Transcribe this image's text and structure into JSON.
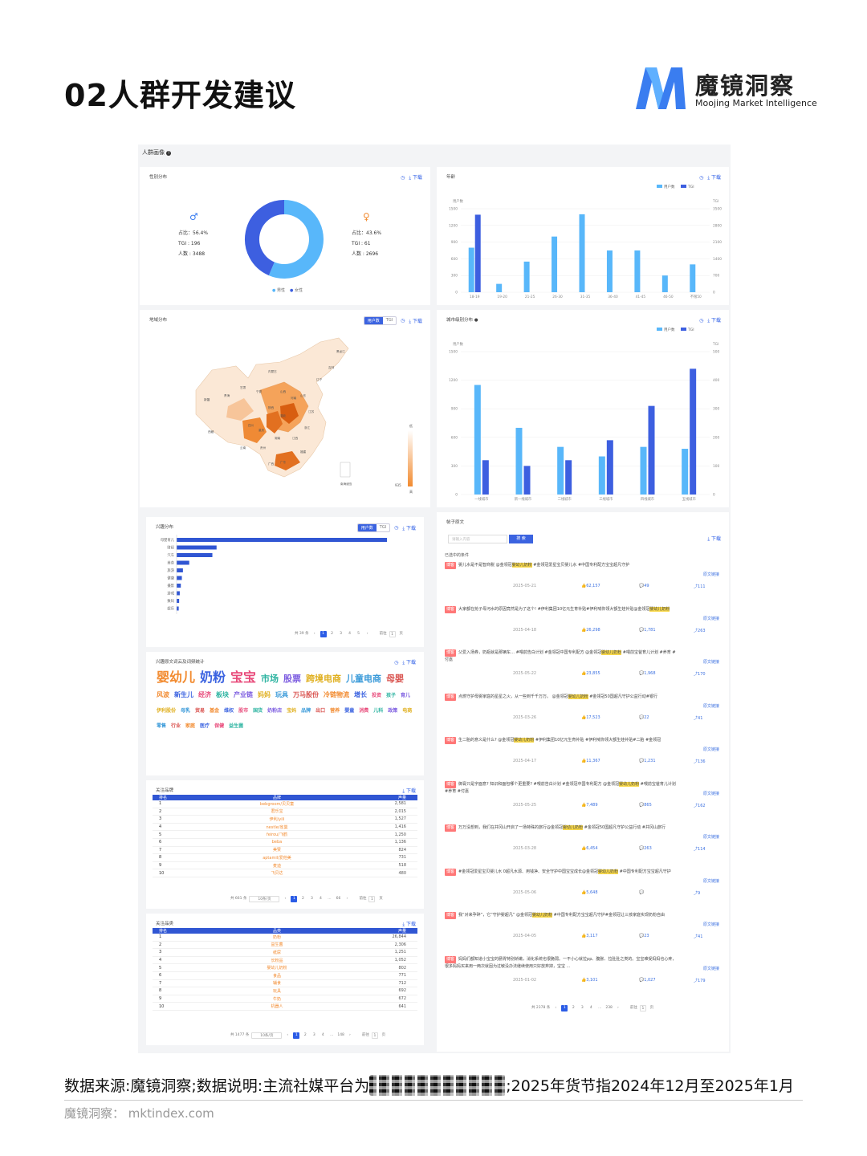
{
  "page": {
    "title": "02人群开发建议",
    "logo_name": "魔镜洞察",
    "logo_sub": "Moojing Market Intelligence",
    "footer_prefix": "数据来源:魔镜洞察;数据说明:主流社媒平台为",
    "footer_suffix": ";2025年货节指2024年12月至2025年1月",
    "site": "魔镜洞察： mktindex.com"
  },
  "colors": {
    "accent": "#2b5ce6",
    "light_blue": "#58b7fa",
    "dark_blue": "#3d5fe0",
    "orange": "#f28b30"
  },
  "section_title": "人群画像",
  "gender": {
    "title": "性别分布",
    "download": "下载",
    "male": {
      "share": "占比：56.4%",
      "tgi": "TGI : 196",
      "count": "人数 : 3488"
    },
    "female": {
      "share": "占比：43.6%",
      "tgi": "TGI : 61",
      "count": "人数 : 2696"
    },
    "legend": [
      "男性",
      "女性"
    ],
    "chart_data": {
      "type": "pie",
      "categories": [
        "男性",
        "女性"
      ],
      "values": [
        56.4,
        43.6
      ]
    }
  },
  "age": {
    "title": "年龄",
    "download": "下载",
    "legend": [
      "用户数",
      "TGI"
    ],
    "ylabel_left": "用户数",
    "ylabel_right": "TGI",
    "left_ticks": [
      "1500",
      "1200",
      "900",
      "600",
      "300",
      "0"
    ],
    "right_ticks": [
      "3500",
      "2800",
      "2100",
      "1400",
      "700",
      "0"
    ],
    "chart_data": {
      "type": "bar",
      "categories": [
        "18-19",
        "19-20",
        "21-25",
        "26-30",
        "31-35",
        "36-40",
        "41-45",
        "46-50",
        "不限50"
      ],
      "series": [
        {
          "name": "用户数",
          "values": [
            800,
            150,
            550,
            1000,
            1400,
            750,
            750,
            300,
            500
          ]
        },
        {
          "name": "TGI",
          "values": [
            3250,
            0,
            0,
            0,
            0,
            0,
            0,
            0,
            0
          ]
        }
      ],
      "ylim": [
        0,
        1500
      ],
      "ylim_right": [
        0,
        3500
      ]
    }
  },
  "region": {
    "title": "地域分布",
    "tabs": [
      "用户数",
      "TGI"
    ],
    "download": "下载",
    "scale_max": "低",
    "scale_min": "高",
    "scale_num": "935",
    "provinces": [
      "新疆",
      "西藏",
      "青海",
      "甘肃",
      "四川",
      "云南",
      "内蒙古",
      "山西",
      "陕西",
      "河南",
      "湖北",
      "湖南",
      "广西",
      "广东",
      "江西",
      "浙江",
      "山东",
      "江苏",
      "辽宁",
      "吉林",
      "黑龙江",
      "宁夏",
      "贵州",
      "重庆",
      "福建",
      "南海诸岛"
    ]
  },
  "city": {
    "title": "城市级别分布",
    "download": "下载",
    "legend": [
      "用户数",
      "TGI"
    ],
    "ylabel_left": "用户数",
    "ylabel_right": "TGI",
    "left_ticks": [
      "1500",
      "1200",
      "900",
      "600",
      "300",
      "0"
    ],
    "right_ticks": [
      "500",
      "400",
      "300",
      "200",
      "100",
      "0"
    ],
    "chart_data": {
      "type": "bar",
      "categories": [
        "一线城市",
        "新一线城市",
        "二线城市",
        "三线城市",
        "四线城市",
        "五线城市"
      ],
      "series": [
        {
          "name": "用户数",
          "values": [
            1150,
            700,
            500,
            400,
            500,
            480
          ]
        },
        {
          "name": "TGI",
          "values": [
            120,
            100,
            120,
            190,
            310,
            440
          ]
        }
      ],
      "ylim": [
        0,
        1500
      ],
      "ylim_right": [
        0,
        500
      ]
    }
  },
  "interest": {
    "title": "兴趣分布",
    "tabs": [
      "用户数",
      "TGI"
    ],
    "download": "下载",
    "labels": [
      "母婴育儿",
      "财经",
      "汽车",
      "美食",
      "旅游",
      "健康",
      "摄影",
      "游戏",
      "数码",
      "娱乐"
    ],
    "chart_data": {
      "type": "bar",
      "categories": [
        "母婴育儿",
        "财经",
        "汽车",
        "美食",
        "旅游",
        "健康",
        "摄影",
        "游戏",
        "数码",
        "娱乐"
      ],
      "values": [
        100,
        19,
        17,
        6,
        3,
        2.5,
        2,
        1.5,
        1.2,
        1
      ]
    },
    "pager": {
      "total": "共 39 条",
      "pages": [
        "1",
        "2",
        "3",
        "4",
        "5"
      ],
      "goto": "前往",
      "page_input": "1",
      "page_unit": "页"
    }
  },
  "wordcloud": {
    "title": "兴趣原文词云及词频统计",
    "download": "下载",
    "words": [
      "婴幼儿",
      "奶粉",
      "宝宝",
      "市场",
      "股票",
      "跨境电商",
      "儿童电商",
      "母婴",
      "风波",
      "新生儿",
      "经济",
      "板块",
      "产业链",
      "妈妈",
      "玩具",
      "万马股份",
      "冷链物流",
      "增长",
      "投资",
      "孩子",
      "育儿",
      "伊利股份",
      "母乳",
      "贸易",
      "基金",
      "维权",
      "股市",
      "国货",
      "奶粉店",
      "宝妈",
      "品牌",
      "出口",
      "营养",
      "婴童",
      "消费",
      "儿科",
      "政策",
      "电商",
      "零售",
      "行业",
      "家庭",
      "医疗",
      "保健",
      "益生菌"
    ]
  },
  "brands": {
    "title": "关注品牌",
    "download": "下载",
    "headers": [
      "排名",
      "品牌",
      "声量"
    ],
    "rows": [
      [
        "1",
        "bebgroom/贝贝童",
        "2,581"
      ],
      [
        "2",
        "君乐宝",
        "2,015"
      ],
      [
        "3",
        "伊利/yili",
        "1,527"
      ],
      [
        "4",
        "nestle/雀巢",
        "1,416"
      ],
      [
        "5",
        "feirou/飞鹤",
        "1,250"
      ],
      [
        "6",
        "beba",
        "1,136"
      ],
      [
        "7",
        "美赞",
        "824"
      ],
      [
        "8",
        "aptamil/爱他美",
        "731"
      ],
      [
        "9",
        "麦迪",
        "518"
      ],
      [
        "10",
        "飞贝达",
        "480"
      ]
    ],
    "pager": {
      "total": "共 661 条",
      "size": "10条/页",
      "pages": [
        "1",
        "2",
        "3",
        "4",
        "...",
        "66"
      ],
      "goto": "前往",
      "page_input": "1",
      "page_unit": "页"
    }
  },
  "categories": {
    "title": "关注品类",
    "download": "下载",
    "headers": [
      "排名",
      "品类",
      "声量"
    ],
    "rows": [
      [
        "1",
        "奶粉",
        "26,844"
      ],
      [
        "2",
        "益生菌",
        "2,306"
      ],
      [
        "3",
        "纸尿",
        "1,251"
      ],
      [
        "4",
        "长粉品",
        "1,052"
      ],
      [
        "5",
        "婴幼儿奶粉",
        "802"
      ],
      [
        "6",
        "食品",
        "771"
      ],
      [
        "7",
        "辅食",
        "712"
      ],
      [
        "8",
        "玩具",
        "692"
      ],
      [
        "9",
        "牛奶",
        "672"
      ],
      [
        "10",
        "机器人",
        "641"
      ]
    ],
    "pager": {
      "total": "共 1477 条",
      "size": "10条/页",
      "pages": [
        "1",
        "2",
        "3",
        "4",
        "...",
        "148"
      ],
      "goto": "前往",
      "page_input": "1",
      "page_unit": "页"
    }
  },
  "posts": {
    "title": "帖子原文",
    "search_placeholder": "请输入内容",
    "search_button": "搜 索",
    "download": "下载",
    "selected": "已选中的条件",
    "link_label": "原文链接",
    "items": [
      {
        "tag": "博客",
        "pre": "婴儿水是不是智商税 @金领冠",
        "hl": "婴幼儿奶粉",
        "post": " #金领冠爱星宝贝婴儿水 #中国专利配方宝宝超凡守护",
        "date": "2025-05-21",
        "likes": "62,157",
        "comments": "49",
        "shares": "111"
      },
      {
        "tag": "博客",
        "pre": "大家都在抢子母河水的原因竟然是为了这个! #伊利集团10亿元生育补贴#伊利喊你领大额生娃补贴@金领冠",
        "hl": "婴幼儿奶粉",
        "post": "",
        "date": "2025-04-18",
        "likes": "26,298",
        "comments": "1,781",
        "shares": "263"
      },
      {
        "tag": "博客",
        "pre": "父爱入场券，奶瓶就是那辆车… #喂前告白计划 #金领冠中国专利配方 @金领冠",
        "hl": "婴幼儿奶粉",
        "post": " #喂前宝爸育儿计划 #养育 #付嘉",
        "date": "2025-05-22",
        "likes": "23,855",
        "comments": "1,968",
        "shares": "170"
      },
      {
        "tag": "博客",
        "pre": "点燃守护母婴家庭的星星之火，从一些到千千万万。 @金领冠",
        "hl": "婴幼儿奶粉",
        "post": " #金领冠50国超凡守护公益行动#银行",
        "date": "2025-03-26",
        "likes": "17,523",
        "comments": "22",
        "shares": "41"
      },
      {
        "tag": "博客",
        "pre": "生二胎的意义是什么? @金领冠",
        "hl": "婴幼儿奶粉",
        "post": " #伊利集团10亿元生育补贴 #伊利喊你领大额生娃补贴#二胎 #金领冠",
        "date": "2025-04-17",
        "likes": "11,367",
        "comments": "1,231",
        "shares": "136"
      },
      {
        "tag": "博客",
        "pre": "御膏只是字面意? 知识和面包哪个更重要? #喂前告白计划 #金领冠中国专利配方 @金领冠",
        "hl": "婴幼儿奶粉",
        "post": " #喂前宝爸育儿计划 #养育 #付嘉",
        "date": "2025-05-25",
        "likes": "7,489",
        "comments": "865",
        "shares": "162"
      },
      {
        "tag": "博客",
        "pre": "万万没想到，我们在井冈山开启了一场特殊的旅行@金领冠",
        "hl": "婴幼儿奶粉",
        "post": " #金领冠50国超凡守护公益行动 #井冈山旅行",
        "date": "2025-03-28",
        "likes": "6,454",
        "comments": "263",
        "shares": "114"
      },
      {
        "tag": "博客",
        "pre": "#金领冠爱星宝贝婴儿水 0超凡水源、用钱净、安全守护中国宝宝成长@金领冠",
        "hl": "婴幼儿奶粉",
        "post": " #中国专利配方宝宝超凡守护",
        "date": "2025-05-06",
        "likes": "5,648",
        "comments": "",
        "shares": "9"
      },
      {
        "tag": "博客",
        "pre": "我“对来孕碎”，它“守护婴超凡” @金领冠",
        "hl": "婴幼儿奶粉",
        "post": " #中国专利配方宝宝超凡守护#金领冠让三孩家庭实现奶粉自由",
        "date": "2025-04-05",
        "likes": "3,117",
        "comments": "23",
        "shares": "41"
      },
      {
        "tag": "博客",
        "pre": "妈妈们都知道小宝宝的肠胃特别娇嫩，消化系统也很脆弱。一不小心就拉pp、腹胀、拉肚肚之类的。宝宝难受妈妈也心疼，很多妈妈买来用一两次就因为过敏没办法继续使用只好放弃掉，宝宝 ...",
        "hl": "",
        "post": "",
        "date": "2025-01-02",
        "likes": "3,101",
        "comments": "1,027",
        "shares": "179"
      }
    ],
    "pager": {
      "total": "共 2378 条",
      "pages": [
        "1",
        "2",
        "3",
        "4",
        "...",
        "238"
      ],
      "goto": "前往",
      "page_input": "1",
      "page_unit": "页"
    }
  }
}
